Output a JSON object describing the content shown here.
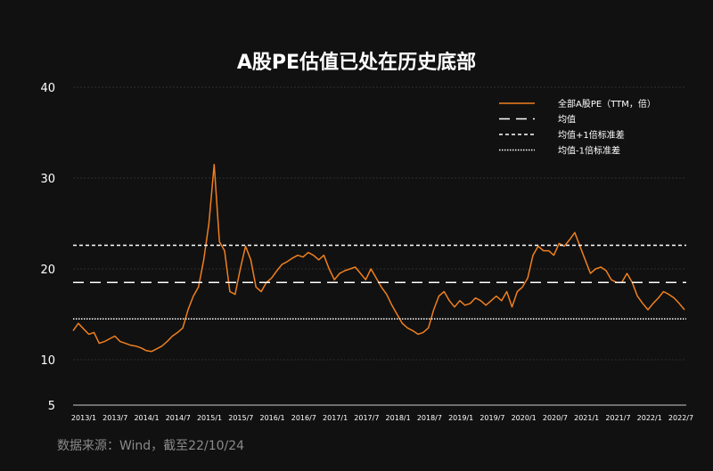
{
  "title": "A股PE估值已处在历史底部",
  "source": "数据来源：Wind，截至22/10/24",
  "colors": {
    "background": "#111111",
    "series": "#F07F1E",
    "reference": "#FFFFFF",
    "grid": "#2E2E2E"
  },
  "chart_data": {
    "type": "line",
    "title": "A股PE估值已处在历史底部",
    "xlabel": "",
    "ylabel": "",
    "ylim": [
      5,
      40
    ],
    "yticks": [
      "5",
      "10",
      "20",
      "30",
      "40"
    ],
    "ytick_values": [
      5,
      10,
      20,
      30,
      40
    ],
    "grid": true,
    "legend_position": "top-right",
    "xticks": [
      "2013/1",
      "2013/7",
      "2014/1",
      "2014/7",
      "2015/1",
      "2015/7",
      "2016/1",
      "2016/7",
      "2017/1",
      "2017/7",
      "2018/1",
      "2018/7",
      "2019/1",
      "2019/7",
      "2020/1",
      "2020/7",
      "2021/1",
      "2021/7",
      "2022/1",
      "2022/7"
    ],
    "legend": [
      "全部A股PE（TTM，倍）",
      "均值",
      "均值+1倍标准差",
      "均值-1倍标准差"
    ],
    "reference_lines": [
      {
        "name": "均值",
        "value": 18.5,
        "style": "dashed"
      },
      {
        "name": "均值+1倍标准差",
        "value": 22.6,
        "style": "dashed-fine"
      },
      {
        "name": "均值-1倍标准差",
        "value": 14.5,
        "style": "dotted"
      }
    ],
    "series": [
      {
        "name": "全部A股PE（TTM，倍）",
        "x": [
          "2013/1",
          "2013/2",
          "2013/3",
          "2013/4",
          "2013/5",
          "2013/6",
          "2013/7",
          "2013/8",
          "2013/9",
          "2013/10",
          "2013/11",
          "2013/12",
          "2014/1",
          "2014/2",
          "2014/3",
          "2014/4",
          "2014/5",
          "2014/6",
          "2014/7",
          "2014/8",
          "2014/9",
          "2014/10",
          "2014/11",
          "2014/12",
          "2015/1",
          "2015/2",
          "2015/3",
          "2015/4",
          "2015/5",
          "2015/6",
          "2015/7",
          "2015/8",
          "2015/9",
          "2015/10",
          "2015/11",
          "2015/12",
          "2016/1",
          "2016/2",
          "2016/3",
          "2016/4",
          "2016/5",
          "2016/6",
          "2016/7",
          "2016/8",
          "2016/9",
          "2016/10",
          "2016/11",
          "2016/12",
          "2017/1",
          "2017/2",
          "2017/3",
          "2017/4",
          "2017/5",
          "2017/6",
          "2017/7",
          "2017/8",
          "2017/9",
          "2017/10",
          "2017/11",
          "2017/12",
          "2018/1",
          "2018/2",
          "2018/3",
          "2018/4",
          "2018/5",
          "2018/6",
          "2018/7",
          "2018/8",
          "2018/9",
          "2018/10",
          "2018/11",
          "2018/12",
          "2019/1",
          "2019/2",
          "2019/3",
          "2019/4",
          "2019/5",
          "2019/6",
          "2019/7",
          "2019/8",
          "2019/9",
          "2019/10",
          "2019/11",
          "2019/12",
          "2020/1",
          "2020/2",
          "2020/3",
          "2020/4",
          "2020/5",
          "2020/6",
          "2020/7",
          "2020/8",
          "2020/9",
          "2020/10",
          "2020/11",
          "2020/12",
          "2021/1",
          "2021/2",
          "2021/3",
          "2021/4",
          "2021/5",
          "2021/6",
          "2021/7",
          "2021/8",
          "2021/9",
          "2021/10",
          "2021/11",
          "2021/12",
          "2022/1",
          "2022/2",
          "2022/3",
          "2022/4",
          "2022/5",
          "2022/6",
          "2022/7",
          "2022/8",
          "2022/9",
          "2022/10"
        ],
        "values": [
          13.2,
          14.0,
          13.4,
          12.8,
          13.0,
          11.8,
          12.0,
          12.3,
          12.6,
          12.0,
          11.8,
          11.6,
          11.5,
          11.3,
          11.0,
          10.9,
          11.2,
          11.5,
          12.0,
          12.6,
          13.0,
          13.5,
          15.5,
          17.0,
          18.0,
          21.0,
          25.0,
          31.5,
          23.0,
          22.0,
          17.5,
          17.2,
          20.0,
          22.5,
          21.0,
          18.0,
          17.5,
          18.5,
          19.0,
          19.8,
          20.5,
          20.8,
          21.2,
          21.5,
          21.3,
          21.8,
          21.5,
          21.0,
          21.5,
          20.0,
          18.8,
          19.5,
          19.8,
          20.0,
          20.2,
          19.5,
          18.8,
          20.0,
          19.0,
          18.0,
          17.2,
          16.0,
          15.0,
          14.0,
          13.5,
          13.2,
          12.8,
          13.0,
          13.5,
          15.5,
          17.0,
          17.5,
          16.5,
          15.8,
          16.5,
          16.0,
          16.2,
          16.8,
          16.5,
          16.0,
          16.5,
          17.0,
          16.5,
          17.5,
          15.8,
          17.5,
          18.0,
          19.0,
          21.5,
          22.5,
          22.0,
          22.0,
          21.5,
          22.8,
          22.5,
          23.2,
          24.0,
          22.5,
          21.0,
          19.5,
          20.0,
          20.2,
          19.8,
          18.8,
          18.5,
          18.5,
          19.5,
          18.5,
          17.0,
          16.2,
          15.5,
          16.2,
          16.8,
          17.5,
          17.2,
          16.8,
          16.2,
          15.5
        ]
      }
    ]
  }
}
